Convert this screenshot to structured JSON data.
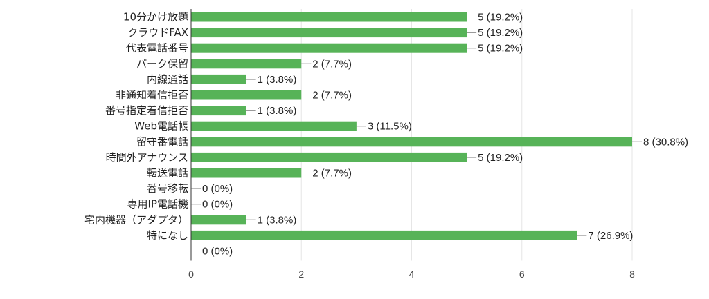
{
  "chart_data": {
    "type": "bar",
    "orientation": "horizontal",
    "categories": [
      "10分かけ放題",
      "クラウドFAX",
      "代表電話番号",
      "パーク保留",
      "内線通話",
      "非通知着信拒否",
      "番号指定着信拒否",
      "Web電話帳",
      "留守番電話",
      "時間外アナウンス",
      "転送電話",
      "番号移転",
      "専用IP電話機",
      "宅内機器（アダプタ）",
      "特になし",
      ""
    ],
    "values": [
      5,
      5,
      5,
      2,
      1,
      2,
      1,
      3,
      8,
      5,
      2,
      0,
      0,
      1,
      7,
      0
    ],
    "value_labels": [
      "5 (19.2%)",
      "5 (19.2%)",
      "5 (19.2%)",
      "2 (7.7%)",
      "1 (3.8%)",
      "2 (7.7%)",
      "1 (3.8%)",
      "3 (11.5%)",
      "8 (30.8%)",
      "5 (19.2%)",
      "2 (7.7%)",
      "0 (0%)",
      "0 (0%)",
      "1 (3.8%)",
      "7 (26.9%)",
      "0 (0%)"
    ],
    "xlim": [
      0,
      8
    ],
    "xticks": [
      0,
      2,
      4,
      6,
      8
    ],
    "xtick_labels": [
      "0",
      "2",
      "4",
      "6",
      "8"
    ],
    "grid": true,
    "bar_color": "#57b358"
  }
}
